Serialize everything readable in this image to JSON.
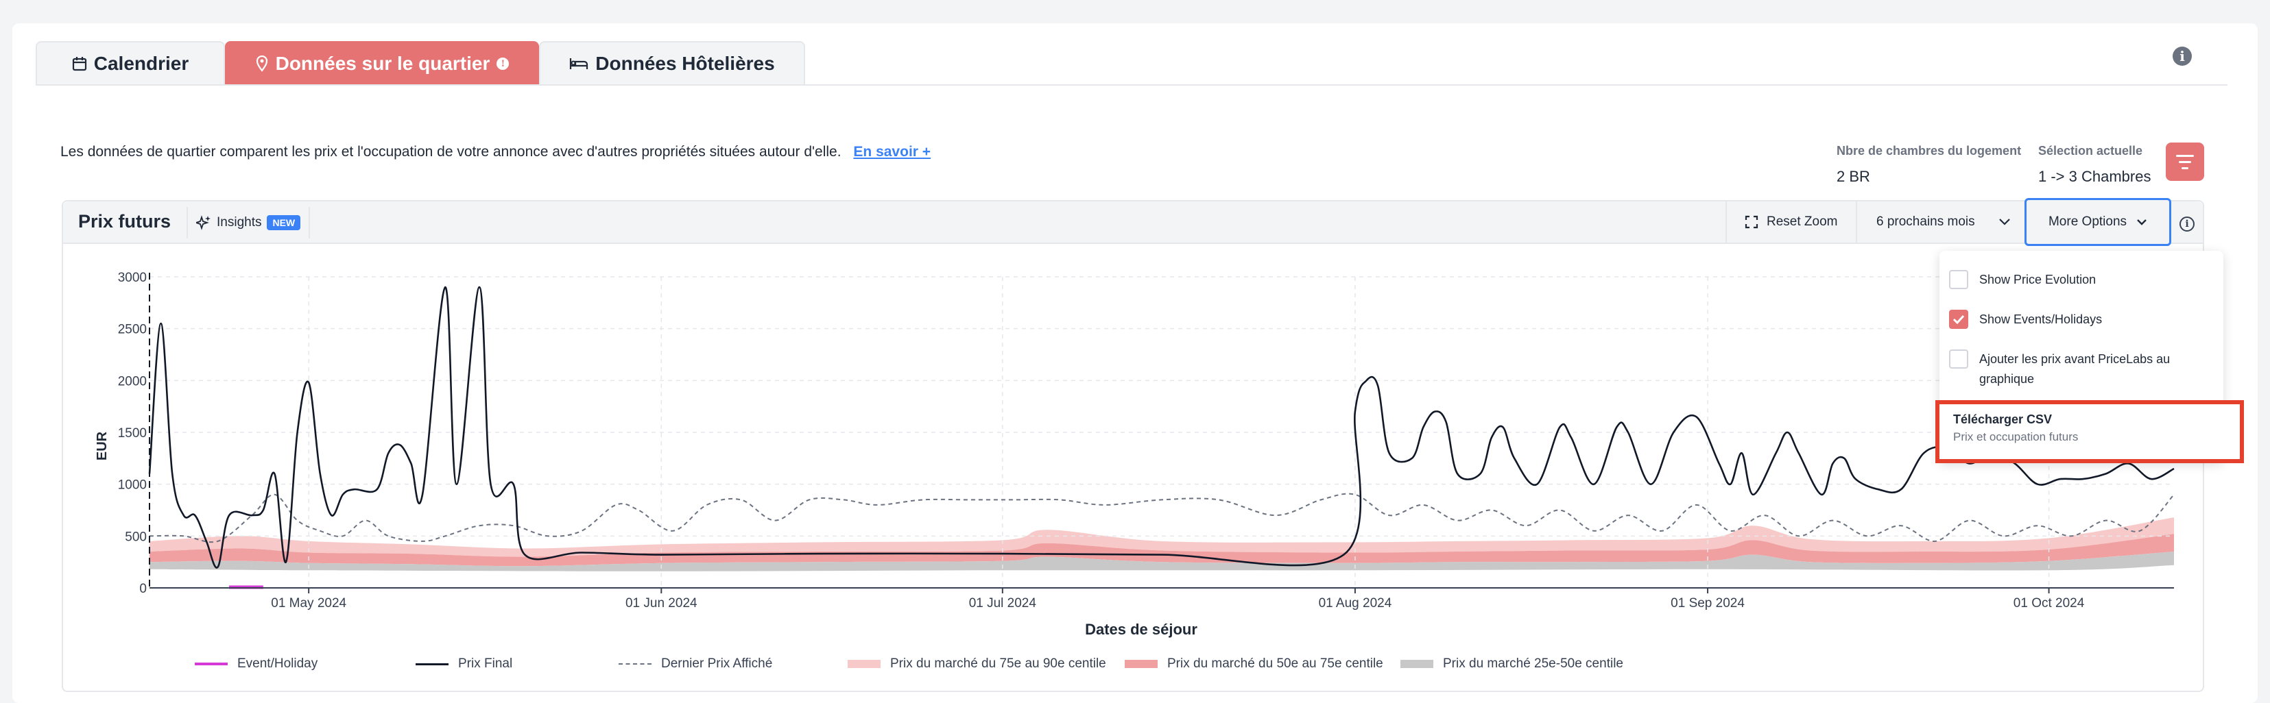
{
  "tabs": [
    {
      "label": "Calendrier",
      "icon": "calendar-icon"
    },
    {
      "label": "Données sur le quartier",
      "icon": "map-pin-icon"
    },
    {
      "label": "Données Hôtelières",
      "icon": "bed-icon"
    }
  ],
  "description": "Les données de quartier comparent les prix et l'occupation de votre annonce avec d'autres propriétés situées autour d'elle.",
  "learn_more": "En savoir +",
  "stats": {
    "bedrooms_label": "Nbre de chambres du logement",
    "bedrooms_value": "2 BR",
    "selection_label": "Sélection actuelle",
    "selection_value": "1 -> 3 Chambres"
  },
  "toolbar": {
    "title": "Prix futurs",
    "insights": "Insights",
    "insights_badge": "NEW",
    "reset_zoom": "Reset Zoom",
    "range": "6 prochains mois",
    "more_options": "More Options"
  },
  "dropdown": {
    "items": [
      {
        "label": "Show Price Evolution",
        "checked": false
      },
      {
        "label": "Show Events/Holidays",
        "checked": true
      },
      {
        "label": "Ajouter les prix avant PriceLabs au graphique",
        "checked": false
      }
    ],
    "csv_title": "Télécharger CSV",
    "csv_subtitle": "Prix et occupation futurs"
  },
  "colors": {
    "accent": "#e57373",
    "highlight": "#e4402b",
    "link": "#3b82f6",
    "band_75_90": "#f8c9c9",
    "band_50_75": "#f0a0a0",
    "band_25_50": "#c8c8c8",
    "event": "#d63ad6"
  },
  "chart_data": {
    "type": "line",
    "xlabel": "Dates de séjour",
    "ylabel": "EUR",
    "ylim": [
      0,
      3000
    ],
    "y_ticks": [
      "0",
      "500",
      "1000",
      "1500",
      "2000",
      "2500",
      "3000"
    ],
    "x_range": [
      "2024-04-17",
      "2024-10-12"
    ],
    "x_ticks": [
      {
        "date": "2024-05-01",
        "label": "01 May 2024"
      },
      {
        "date": "2024-06-01",
        "label": "01 Jun 2024"
      },
      {
        "date": "2024-07-01",
        "label": "01 Jul 2024"
      },
      {
        "date": "2024-08-01",
        "label": "01 Aug 2024"
      },
      {
        "date": "2024-09-01",
        "label": "01 Sep 2024"
      },
      {
        "date": "2024-10-01",
        "label": "01 Oct 2024"
      }
    ],
    "legend": [
      {
        "label": "Event/Holiday",
        "style": "event"
      },
      {
        "label": "Prix Final",
        "style": "solid"
      },
      {
        "label": "Dernier Prix Affiché",
        "style": "dashed"
      },
      {
        "label": "Prix du marché du 75e au 90e centile",
        "style": "band1"
      },
      {
        "label": "Prix du marché du 50e au 75e centile",
        "style": "band2"
      },
      {
        "label": "Prix du marché 25e-50e centile",
        "style": "band3"
      }
    ],
    "events": [
      {
        "start": "2024-04-24",
        "end": "2024-04-27"
      }
    ],
    "series": [
      {
        "name": "Prix Final",
        "points": [
          [
            "2024-04-17",
            1100
          ],
          [
            "2024-04-18",
            2550
          ],
          [
            "2024-04-19",
            1100
          ],
          [
            "2024-04-20",
            700
          ],
          [
            "2024-04-21",
            700
          ],
          [
            "2024-04-22",
            450
          ],
          [
            "2024-04-23",
            200
          ],
          [
            "2024-04-24",
            700
          ],
          [
            "2024-04-26",
            700
          ],
          [
            "2024-04-27",
            750
          ],
          [
            "2024-04-28",
            1100
          ],
          [
            "2024-04-29",
            250
          ],
          [
            "2024-04-30",
            1500
          ],
          [
            "2024-05-01",
            1980
          ],
          [
            "2024-05-02",
            1100
          ],
          [
            "2024-05-03",
            700
          ],
          [
            "2024-05-04",
            900
          ],
          [
            "2024-05-05",
            950
          ],
          [
            "2024-05-07",
            950
          ],
          [
            "2024-05-08",
            1300
          ],
          [
            "2024-05-09",
            1380
          ],
          [
            "2024-05-10",
            1200
          ],
          [
            "2024-05-11",
            900
          ],
          [
            "2024-05-13",
            2900
          ],
          [
            "2024-05-14",
            1000
          ],
          [
            "2024-05-16",
            2900
          ],
          [
            "2024-05-17",
            1000
          ],
          [
            "2024-05-19",
            1000
          ],
          [
            "2024-05-20",
            320
          ],
          [
            "2024-05-25",
            340
          ],
          [
            "2024-06-01",
            320
          ],
          [
            "2024-06-15",
            330
          ],
          [
            "2024-07-01",
            330
          ],
          [
            "2024-07-15",
            320
          ],
          [
            "2024-07-31",
            320
          ],
          [
            "2024-08-01",
            1700
          ],
          [
            "2024-08-02",
            2000
          ],
          [
            "2024-08-03",
            1950
          ],
          [
            "2024-08-04",
            1300
          ],
          [
            "2024-08-06",
            1250
          ],
          [
            "2024-08-07",
            1550
          ],
          [
            "2024-08-08",
            1700
          ],
          [
            "2024-08-09",
            1600
          ],
          [
            "2024-08-10",
            1100
          ],
          [
            "2024-08-12",
            1100
          ],
          [
            "2024-08-13",
            1450
          ],
          [
            "2024-08-14",
            1550
          ],
          [
            "2024-08-15",
            1250
          ],
          [
            "2024-08-17",
            1000
          ],
          [
            "2024-08-19",
            1550
          ],
          [
            "2024-08-20",
            1450
          ],
          [
            "2024-08-22",
            1000
          ],
          [
            "2024-08-24",
            1550
          ],
          [
            "2024-08-25",
            1500
          ],
          [
            "2024-08-27",
            1000
          ],
          [
            "2024-08-29",
            1500
          ],
          [
            "2024-08-31",
            1650
          ],
          [
            "2024-09-02",
            1200
          ],
          [
            "2024-09-03",
            1000
          ],
          [
            "2024-09-04",
            1300
          ],
          [
            "2024-09-05",
            900
          ],
          [
            "2024-09-07",
            1300
          ],
          [
            "2024-09-08",
            1500
          ],
          [
            "2024-09-09",
            1300
          ],
          [
            "2024-09-11",
            900
          ],
          [
            "2024-09-12",
            1200
          ],
          [
            "2024-09-13",
            1250
          ],
          [
            "2024-09-14",
            1050
          ],
          [
            "2024-09-16",
            950
          ],
          [
            "2024-09-18",
            950
          ],
          [
            "2024-09-20",
            1300
          ],
          [
            "2024-09-22",
            1350
          ],
          [
            "2024-09-24",
            1200
          ],
          [
            "2024-09-26",
            1300
          ],
          [
            "2024-09-28",
            1200
          ],
          [
            "2024-09-30",
            1000
          ],
          [
            "2024-10-02",
            1050
          ],
          [
            "2024-10-04",
            1050
          ],
          [
            "2024-10-06",
            1100
          ],
          [
            "2024-10-08",
            1200
          ],
          [
            "2024-10-10",
            1050
          ],
          [
            "2024-10-12",
            1150
          ]
        ]
      },
      {
        "name": "Dernier Prix Affiché",
        "points": [
          [
            "2024-04-17",
            500
          ],
          [
            "2024-04-20",
            500
          ],
          [
            "2024-04-23",
            450
          ],
          [
            "2024-04-26",
            700
          ],
          [
            "2024-04-28",
            900
          ],
          [
            "2024-04-30",
            650
          ],
          [
            "2024-05-02",
            550
          ],
          [
            "2024-05-04",
            500
          ],
          [
            "2024-05-06",
            650
          ],
          [
            "2024-05-08",
            500
          ],
          [
            "2024-05-11",
            450
          ],
          [
            "2024-05-13",
            500
          ],
          [
            "2024-05-16",
            600
          ],
          [
            "2024-05-19",
            600
          ],
          [
            "2024-05-22",
            500
          ],
          [
            "2024-05-25",
            550
          ],
          [
            "2024-05-28",
            800
          ],
          [
            "2024-05-30",
            750
          ],
          [
            "2024-06-02",
            550
          ],
          [
            "2024-06-05",
            800
          ],
          [
            "2024-06-08",
            850
          ],
          [
            "2024-06-11",
            650
          ],
          [
            "2024-06-14",
            850
          ],
          [
            "2024-06-17",
            850
          ],
          [
            "2024-06-20",
            800
          ],
          [
            "2024-06-24",
            850
          ],
          [
            "2024-06-28",
            850
          ],
          [
            "2024-07-02",
            850
          ],
          [
            "2024-07-06",
            850
          ],
          [
            "2024-07-10",
            800
          ],
          [
            "2024-07-15",
            850
          ],
          [
            "2024-07-20",
            850
          ],
          [
            "2024-07-25",
            700
          ],
          [
            "2024-07-29",
            850
          ],
          [
            "2024-08-01",
            900
          ],
          [
            "2024-08-04",
            700
          ],
          [
            "2024-08-07",
            800
          ],
          [
            "2024-08-10",
            650
          ],
          [
            "2024-08-13",
            750
          ],
          [
            "2024-08-16",
            600
          ],
          [
            "2024-08-19",
            750
          ],
          [
            "2024-08-22",
            550
          ],
          [
            "2024-08-25",
            700
          ],
          [
            "2024-08-28",
            550
          ],
          [
            "2024-08-31",
            800
          ],
          [
            "2024-09-03",
            550
          ],
          [
            "2024-09-06",
            700
          ],
          [
            "2024-09-09",
            500
          ],
          [
            "2024-09-12",
            650
          ],
          [
            "2024-09-15",
            500
          ],
          [
            "2024-09-18",
            600
          ],
          [
            "2024-09-21",
            450
          ],
          [
            "2024-09-24",
            650
          ],
          [
            "2024-09-27",
            500
          ],
          [
            "2024-09-30",
            600
          ],
          [
            "2024-10-03",
            500
          ],
          [
            "2024-10-06",
            650
          ],
          [
            "2024-10-09",
            550
          ],
          [
            "2024-10-12",
            900
          ]
        ]
      },
      {
        "name": "Prix du marché du 75e au 90e centile",
        "points": [
          [
            "2024-04-17",
            450
          ],
          [
            "2024-04-25",
            500
          ],
          [
            "2024-05-01",
            450
          ],
          [
            "2024-05-10",
            420
          ],
          [
            "2024-05-20",
            380
          ],
          [
            "2024-06-01",
            420
          ],
          [
            "2024-06-15",
            440
          ],
          [
            "2024-07-01",
            460
          ],
          [
            "2024-07-05",
            560
          ],
          [
            "2024-07-15",
            450
          ],
          [
            "2024-07-31",
            440
          ],
          [
            "2024-08-10",
            450
          ],
          [
            "2024-08-20",
            460
          ],
          [
            "2024-09-01",
            480
          ],
          [
            "2024-09-05",
            600
          ],
          [
            "2024-09-10",
            470
          ],
          [
            "2024-09-20",
            450
          ],
          [
            "2024-10-01",
            480
          ],
          [
            "2024-10-12",
            680
          ]
        ]
      },
      {
        "name": "Prix du marché du 50e au 75e centile",
        "points": [
          [
            "2024-04-17",
            350
          ],
          [
            "2024-04-25",
            380
          ],
          [
            "2024-05-01",
            340
          ],
          [
            "2024-05-10",
            330
          ],
          [
            "2024-05-20",
            300
          ],
          [
            "2024-06-01",
            340
          ],
          [
            "2024-06-15",
            350
          ],
          [
            "2024-07-01",
            360
          ],
          [
            "2024-07-05",
            430
          ],
          [
            "2024-07-15",
            360
          ],
          [
            "2024-07-31",
            340
          ],
          [
            "2024-08-10",
            350
          ],
          [
            "2024-08-20",
            360
          ],
          [
            "2024-09-01",
            370
          ],
          [
            "2024-09-05",
            460
          ],
          [
            "2024-09-10",
            360
          ],
          [
            "2024-09-20",
            350
          ],
          [
            "2024-10-01",
            370
          ],
          [
            "2024-10-12",
            520
          ]
        ]
      },
      {
        "name": "Prix du marché 25e-50e centile",
        "points": [
          [
            "2024-04-17",
            250
          ],
          [
            "2024-04-25",
            260
          ],
          [
            "2024-05-01",
            240
          ],
          [
            "2024-05-10",
            230
          ],
          [
            "2024-05-20",
            210
          ],
          [
            "2024-06-01",
            240
          ],
          [
            "2024-06-15",
            250
          ],
          [
            "2024-07-01",
            260
          ],
          [
            "2024-07-05",
            300
          ],
          [
            "2024-07-15",
            250
          ],
          [
            "2024-07-31",
            240
          ],
          [
            "2024-08-10",
            250
          ],
          [
            "2024-08-20",
            250
          ],
          [
            "2024-09-01",
            260
          ],
          [
            "2024-09-05",
            320
          ],
          [
            "2024-09-10",
            250
          ],
          [
            "2024-09-20",
            240
          ],
          [
            "2024-10-01",
            260
          ],
          [
            "2024-10-12",
            350
          ]
        ]
      },
      {
        "name": "floor",
        "points": [
          [
            "2024-04-17",
            180
          ],
          [
            "2024-05-01",
            170
          ],
          [
            "2024-06-01",
            160
          ],
          [
            "2024-07-01",
            170
          ],
          [
            "2024-08-01",
            170
          ],
          [
            "2024-09-01",
            180
          ],
          [
            "2024-10-01",
            170
          ],
          [
            "2024-10-12",
            220
          ]
        ]
      }
    ]
  }
}
